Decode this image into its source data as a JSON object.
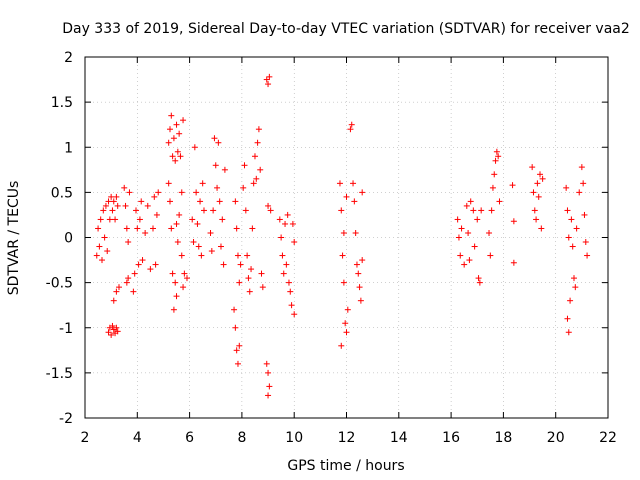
{
  "chart_data": {
    "type": "scatter",
    "title": "Day 333 of 2019, Sidereal Day-to-day VTEC variation (SDTVAR) for receiver vaa2",
    "xlabel": "GPS time / hours",
    "ylabel": "SDTVAR / TECUs",
    "xlim": [
      2,
      22
    ],
    "ylim": [
      -2,
      2
    ],
    "xticks": [
      2,
      4,
      6,
      8,
      10,
      12,
      14,
      16,
      18,
      20,
      22
    ],
    "yticks": [
      -2,
      -1.5,
      -1,
      -0.5,
      0,
      0.5,
      1,
      1.5,
      2
    ],
    "xtick_labels": [
      "2",
      "4",
      "6",
      "8",
      "10",
      "12",
      "14",
      "16",
      "18",
      "20",
      "22"
    ],
    "ytick_labels": [
      "-2",
      "-1.5",
      "-1",
      "-0.5",
      "0",
      "0.5",
      "1",
      "1.5",
      "2"
    ],
    "grid": true,
    "marker": "+",
    "color": "#ff0000",
    "series": [
      {
        "name": "SDTVAR",
        "points": [
          [
            2.45,
            -0.2
          ],
          [
            2.5,
            0.1
          ],
          [
            2.55,
            -0.1
          ],
          [
            2.6,
            0.2
          ],
          [
            2.65,
            -0.25
          ],
          [
            2.7,
            0.3
          ],
          [
            2.75,
            0.0
          ],
          [
            2.8,
            0.35
          ],
          [
            2.85,
            -0.15
          ],
          [
            2.9,
            0.4
          ],
          [
            2.95,
            0.2
          ],
          [
            3.0,
            0.45
          ],
          [
            3.05,
            0.3
          ],
          [
            3.1,
            0.4
          ],
          [
            3.15,
            0.2
          ],
          [
            3.2,
            0.45
          ],
          [
            3.25,
            0.35
          ],
          [
            2.9,
            -1.05
          ],
          [
            2.95,
            -1.0
          ],
          [
            3.0,
            -1.08
          ],
          [
            3.05,
            -0.98
          ],
          [
            3.1,
            -1.02
          ],
          [
            3.15,
            -1.06
          ],
          [
            3.2,
            -1.0
          ],
          [
            3.25,
            -1.04
          ],
          [
            3.1,
            -0.7
          ],
          [
            3.2,
            -0.6
          ],
          [
            3.3,
            -0.55
          ],
          [
            3.5,
            0.55
          ],
          [
            3.55,
            0.35
          ],
          [
            3.6,
            0.1
          ],
          [
            3.65,
            -0.05
          ],
          [
            3.6,
            -0.5
          ],
          [
            3.65,
            -0.45
          ],
          [
            3.7,
            0.5
          ],
          [
            3.85,
            -0.6
          ],
          [
            3.9,
            -0.4
          ],
          [
            3.95,
            0.3
          ],
          [
            4.0,
            0.1
          ],
          [
            4.05,
            -0.3
          ],
          [
            4.1,
            0.2
          ],
          [
            4.15,
            0.4
          ],
          [
            4.2,
            -0.25
          ],
          [
            4.3,
            0.05
          ],
          [
            4.4,
            0.35
          ],
          [
            4.5,
            -0.35
          ],
          [
            4.6,
            0.1
          ],
          [
            4.65,
            0.45
          ],
          [
            4.7,
            -0.3
          ],
          [
            4.75,
            0.25
          ],
          [
            4.8,
            0.5
          ],
          [
            5.2,
            0.6
          ],
          [
            5.25,
            0.4
          ],
          [
            5.3,
            0.1
          ],
          [
            5.35,
            -0.4
          ],
          [
            5.4,
            -0.8
          ],
          [
            5.45,
            -0.5
          ],
          [
            5.5,
            -0.65
          ],
          [
            5.2,
            1.05
          ],
          [
            5.25,
            1.2
          ],
          [
            5.3,
            1.35
          ],
          [
            5.35,
            0.9
          ],
          [
            5.4,
            1.1
          ],
          [
            5.45,
            0.85
          ],
          [
            5.5,
            1.25
          ],
          [
            5.55,
            0.95
          ],
          [
            5.6,
            1.15
          ],
          [
            5.65,
            0.9
          ],
          [
            5.7,
            0.5
          ],
          [
            5.75,
            1.3
          ],
          [
            5.5,
            0.15
          ],
          [
            5.55,
            -0.05
          ],
          [
            5.6,
            0.25
          ],
          [
            5.7,
            -0.2
          ],
          [
            5.75,
            -0.55
          ],
          [
            5.8,
            -0.4
          ],
          [
            5.9,
            -0.45
          ],
          [
            6.1,
            0.2
          ],
          [
            6.15,
            -0.05
          ],
          [
            6.2,
            1.0
          ],
          [
            6.25,
            0.5
          ],
          [
            6.3,
            0.15
          ],
          [
            6.35,
            -0.1
          ],
          [
            6.4,
            0.4
          ],
          [
            6.45,
            -0.2
          ],
          [
            6.5,
            0.6
          ],
          [
            6.55,
            0.3
          ],
          [
            6.8,
            0.05
          ],
          [
            6.85,
            -0.15
          ],
          [
            6.9,
            0.3
          ],
          [
            6.95,
            1.1
          ],
          [
            7.0,
            0.8
          ],
          [
            7.05,
            0.55
          ],
          [
            7.1,
            1.05
          ],
          [
            7.15,
            0.4
          ],
          [
            7.2,
            -0.1
          ],
          [
            7.25,
            0.2
          ],
          [
            7.3,
            -0.3
          ],
          [
            7.35,
            0.75
          ],
          [
            7.7,
            -0.8
          ],
          [
            7.75,
            -1.0
          ],
          [
            7.8,
            -1.25
          ],
          [
            7.85,
            -1.4
          ],
          [
            7.9,
            -1.2
          ],
          [
            7.75,
            0.4
          ],
          [
            7.8,
            0.1
          ],
          [
            7.85,
            -0.2
          ],
          [
            7.9,
            -0.5
          ],
          [
            7.95,
            -0.3
          ],
          [
            8.05,
            0.55
          ],
          [
            8.1,
            0.8
          ],
          [
            8.15,
            0.3
          ],
          [
            8.2,
            -0.2
          ],
          [
            8.25,
            -0.45
          ],
          [
            8.3,
            -0.6
          ],
          [
            8.35,
            -0.35
          ],
          [
            8.4,
            0.1
          ],
          [
            8.45,
            0.6
          ],
          [
            8.5,
            0.9
          ],
          [
            8.55,
            0.65
          ],
          [
            8.6,
            1.05
          ],
          [
            8.65,
            1.2
          ],
          [
            8.7,
            0.75
          ],
          [
            8.75,
            -0.4
          ],
          [
            8.8,
            -0.55
          ],
          [
            8.95,
            1.75
          ],
          [
            9.0,
            1.7
          ],
          [
            9.05,
            1.78
          ],
          [
            8.95,
            -1.4
          ],
          [
            9.0,
            -1.5
          ],
          [
            9.05,
            -1.65
          ],
          [
            9.0,
            -1.75
          ],
          [
            9.0,
            0.35
          ],
          [
            9.1,
            0.3
          ],
          [
            9.45,
            0.2
          ],
          [
            9.5,
            0.0
          ],
          [
            9.55,
            -0.2
          ],
          [
            9.6,
            -0.4
          ],
          [
            9.65,
            0.15
          ],
          [
            9.7,
            -0.3
          ],
          [
            9.75,
            0.25
          ],
          [
            9.8,
            -0.5
          ],
          [
            9.85,
            -0.6
          ],
          [
            9.9,
            -0.75
          ],
          [
            9.95,
            0.15
          ],
          [
            10.0,
            -0.05
          ],
          [
            10.0,
            -0.85
          ],
          [
            11.75,
            0.6
          ],
          [
            11.8,
            0.3
          ],
          [
            11.85,
            -0.2
          ],
          [
            11.9,
            -0.5
          ],
          [
            11.95,
            -0.95
          ],
          [
            12.0,
            -1.05
          ],
          [
            12.05,
            -0.8
          ],
          [
            11.8,
            -1.2
          ],
          [
            11.9,
            0.05
          ],
          [
            12.0,
            0.45
          ],
          [
            12.15,
            1.2
          ],
          [
            12.2,
            1.25
          ],
          [
            12.25,
            0.6
          ],
          [
            12.3,
            0.4
          ],
          [
            12.35,
            0.05
          ],
          [
            12.4,
            -0.3
          ],
          [
            12.45,
            -0.4
          ],
          [
            12.5,
            -0.55
          ],
          [
            12.55,
            -0.7
          ],
          [
            12.6,
            -0.25
          ],
          [
            12.6,
            0.5
          ],
          [
            16.25,
            0.2
          ],
          [
            16.3,
            0.0
          ],
          [
            16.35,
            -0.2
          ],
          [
            16.4,
            0.1
          ],
          [
            16.5,
            -0.3
          ],
          [
            16.6,
            0.35
          ],
          [
            16.65,
            0.05
          ],
          [
            16.7,
            -0.25
          ],
          [
            16.75,
            0.4
          ],
          [
            16.85,
            0.3
          ],
          [
            16.9,
            -0.1
          ],
          [
            17.0,
            0.2
          ],
          [
            17.05,
            -0.45
          ],
          [
            17.1,
            -0.5
          ],
          [
            17.15,
            0.3
          ],
          [
            17.45,
            0.05
          ],
          [
            17.5,
            -0.2
          ],
          [
            17.55,
            0.3
          ],
          [
            17.6,
            0.55
          ],
          [
            17.65,
            0.7
          ],
          [
            17.7,
            0.85
          ],
          [
            17.75,
            0.95
          ],
          [
            17.8,
            0.9
          ],
          [
            17.85,
            0.4
          ],
          [
            18.35,
            0.58
          ],
          [
            18.4,
            0.18
          ],
          [
            18.4,
            -0.28
          ],
          [
            19.1,
            0.78
          ],
          [
            19.15,
            0.5
          ],
          [
            19.2,
            0.3
          ],
          [
            19.25,
            0.2
          ],
          [
            19.3,
            0.6
          ],
          [
            19.35,
            0.45
          ],
          [
            19.4,
            0.7
          ],
          [
            19.45,
            0.1
          ],
          [
            19.5,
            0.65
          ],
          [
            20.4,
            0.55
          ],
          [
            20.45,
            0.3
          ],
          [
            20.5,
            0.0
          ],
          [
            20.45,
            -0.9
          ],
          [
            20.5,
            -1.05
          ],
          [
            20.55,
            -0.7
          ],
          [
            20.6,
            0.2
          ],
          [
            20.65,
            -0.1
          ],
          [
            20.7,
            -0.45
          ],
          [
            20.75,
            -0.55
          ],
          [
            20.8,
            0.1
          ],
          [
            20.9,
            0.5
          ],
          [
            21.0,
            0.78
          ],
          [
            21.05,
            0.6
          ],
          [
            21.1,
            0.25
          ],
          [
            21.15,
            -0.05
          ],
          [
            21.2,
            -0.2
          ]
        ]
      }
    ]
  }
}
